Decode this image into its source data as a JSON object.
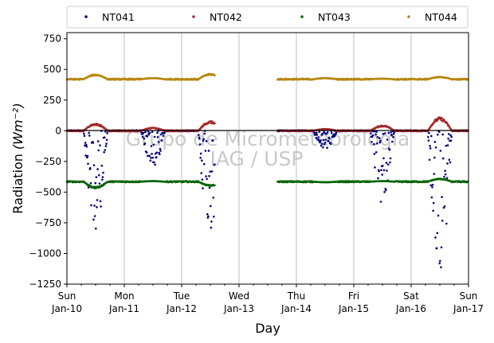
{
  "chart_data": {
    "type": "scatter",
    "xlabel": "Day",
    "ylabel": "Radiation",
    "ylabel_unit": "(Wm⁻²)",
    "ylim": [
      -1250,
      800
    ],
    "yticks": [
      -1250,
      -1000,
      -750,
      -500,
      -250,
      0,
      250,
      500,
      750
    ],
    "yticklabels": [
      "−1250",
      "−1000",
      "−750",
      "−500",
      "−250",
      "0",
      "250",
      "500",
      "750"
    ],
    "x_range": [
      "2024-01-10",
      "2024-01-17"
    ],
    "xticks": [
      {
        "day": "Sun",
        "date": "Jan-10"
      },
      {
        "day": "Mon",
        "date": "Jan-11"
      },
      {
        "day": "Tue",
        "date": "Jan-12"
      },
      {
        "day": "Wed",
        "date": "Jan-13"
      },
      {
        "day": "Thu",
        "date": "Jan-14"
      },
      {
        "day": "Fri",
        "date": "Jan-15"
      },
      {
        "day": "Sat",
        "date": "Jan-16"
      },
      {
        "day": "Sun",
        "date": "Jan-17"
      }
    ],
    "grid": "vertical",
    "legend_placement": "top, above plot",
    "zero_line": true,
    "data_gap": [
      "Jan-12 14:00",
      "Jan-13 16:00"
    ],
    "series": [
      {
        "name": "NT041",
        "color": "#000080",
        "baseline": 0,
        "days": [
          {
            "day": "Jan-10",
            "peak": -800
          },
          {
            "day": "Jan-11",
            "peak": -300
          },
          {
            "day": "Jan-12",
            "peak": -900
          },
          {
            "day": "Jan-14",
            "peak": -150
          },
          {
            "day": "Jan-15",
            "peak": -600
          },
          {
            "day": "Jan-16",
            "peak": -1200
          }
        ]
      },
      {
        "name": "NT042",
        "color": "#a52a2a",
        "baseline": 0,
        "days": [
          {
            "day": "Jan-10",
            "peak": 60
          },
          {
            "day": "Jan-11",
            "peak": 25
          },
          {
            "day": "Jan-12",
            "peak": 80
          },
          {
            "day": "Jan-14",
            "peak": 15
          },
          {
            "day": "Jan-15",
            "peak": 45
          },
          {
            "day": "Jan-16",
            "peak": 110
          }
        ]
      },
      {
        "name": "NT043",
        "color": "#006400",
        "baseline": -415,
        "days": [
          {
            "day": "Jan-10",
            "peak": -470
          },
          {
            "day": "Jan-11",
            "peak": -410
          },
          {
            "day": "Jan-12",
            "peak": -450
          },
          {
            "day": "Jan-14",
            "peak": -420
          },
          {
            "day": "Jan-15",
            "peak": -410
          },
          {
            "day": "Jan-16",
            "peak": -390
          }
        ]
      },
      {
        "name": "NT044",
        "color": "#b8860b",
        "baseline": 420,
        "days": [
          {
            "day": "Jan-10",
            "peak": 460
          },
          {
            "day": "Jan-11",
            "peak": 430
          },
          {
            "day": "Jan-12",
            "peak": 465
          },
          {
            "day": "Jan-14",
            "peak": 430
          },
          {
            "day": "Jan-15",
            "peak": 425
          },
          {
            "day": "Jan-16",
            "peak": 440
          }
        ]
      }
    ],
    "watermark": [
      "Grupo de Micrometeorologia",
      "IAG / USP"
    ]
  }
}
